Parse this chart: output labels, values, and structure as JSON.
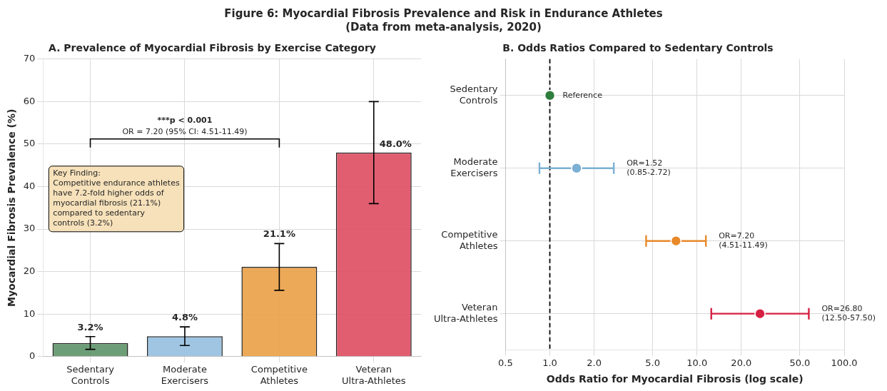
{
  "chart_data": [
    {
      "type": "other",
      "title": "Figure 6: Myocardial Fibrosis Prevalence and Risk in Endurance Athletes",
      "subtitle": "(Data from meta-analysis, 2020)"
    },
    {
      "type": "bar",
      "title": "A. Prevalence of Myocardial Fibrosis by Exercise Category",
      "ylabel": "Myocardial Fibrosis Prevalence (%)",
      "categories": [
        "Sedentary Controls",
        "Moderate Exercisers",
        "Competitive Athletes",
        "Veteran Ultra-Athletes"
      ],
      "values": [
        3.2,
        4.8,
        21.1,
        48.0
      ],
      "colors": [
        "#5e9469",
        "#95bfdf",
        "#eaa046",
        "#de4c62"
      ],
      "errors": [
        1.5,
        2.2,
        5.5,
        12
      ],
      "value_labels": [
        "3.2%",
        "4.8%",
        "21.1%",
        "48.0%"
      ],
      "ylim": [
        0,
        70
      ],
      "yticks": [
        0,
        10,
        20,
        30,
        40,
        50,
        60,
        70
      ],
      "grid": true,
      "legend": false,
      "annotations": [
        "***p < 0.001\nOR = 7.20 (95% CI: 4.51-11.49)",
        "Key Finding:\nCompetitive endurance athletes\nhave 7.2-fold higher odds of\nmyocardial fibrosis (21.1%)\ncompared to sedentary\ncontrols (3.2%)"
      ]
    },
    {
      "type": "scatter",
      "orientation": "horizontal",
      "title": "B. Odds Ratios Compared to Sedentary Controls",
      "xlabel": "Odds Ratio for Myocardial Fibrosis (log scale)",
      "categories": [
        "Sedentary Controls",
        "Moderate Exercisers",
        "Competitive Athletes",
        "Veteran Ultra-Athletes"
      ],
      "values": [
        1.0,
        1.52,
        7.2,
        26.8
      ],
      "colors": [
        "#2e7d3c",
        "#7bafd4",
        "#e8892a",
        "#d62042"
      ],
      "errors": [
        null,
        [
          0.85,
          2.72
        ],
        [
          4.51,
          11.49
        ],
        [
          12.5,
          57.5
        ]
      ],
      "log": "x",
      "xlim": [
        0.5,
        100
      ],
      "xticks": [
        {
          "value": 0.5,
          "label": "0.5"
        },
        {
          "value": 1,
          "label": "1.0"
        },
        {
          "value": 2,
          "label": "2.0"
        },
        {
          "value": 5,
          "label": "5.0"
        },
        {
          "value": 10,
          "label": "10.0"
        },
        {
          "value": 20,
          "label": "20.0"
        },
        {
          "value": 50,
          "label": "50.0"
        },
        {
          "value": 100,
          "label": "100.0"
        }
      ],
      "grid": true,
      "legend": false,
      "marker": "circle",
      "ref_lines": [
        {
          "axis": "x",
          "value": 1,
          "color": "#000000",
          "line_style": "dashed"
        }
      ],
      "annotations": [
        "Reference",
        "OR=1.52\n(0.85-2.72)",
        "OR=7.20\n(4.51-11.49)",
        "OR=26.80\n(12.50-57.50)"
      ]
    }
  ]
}
